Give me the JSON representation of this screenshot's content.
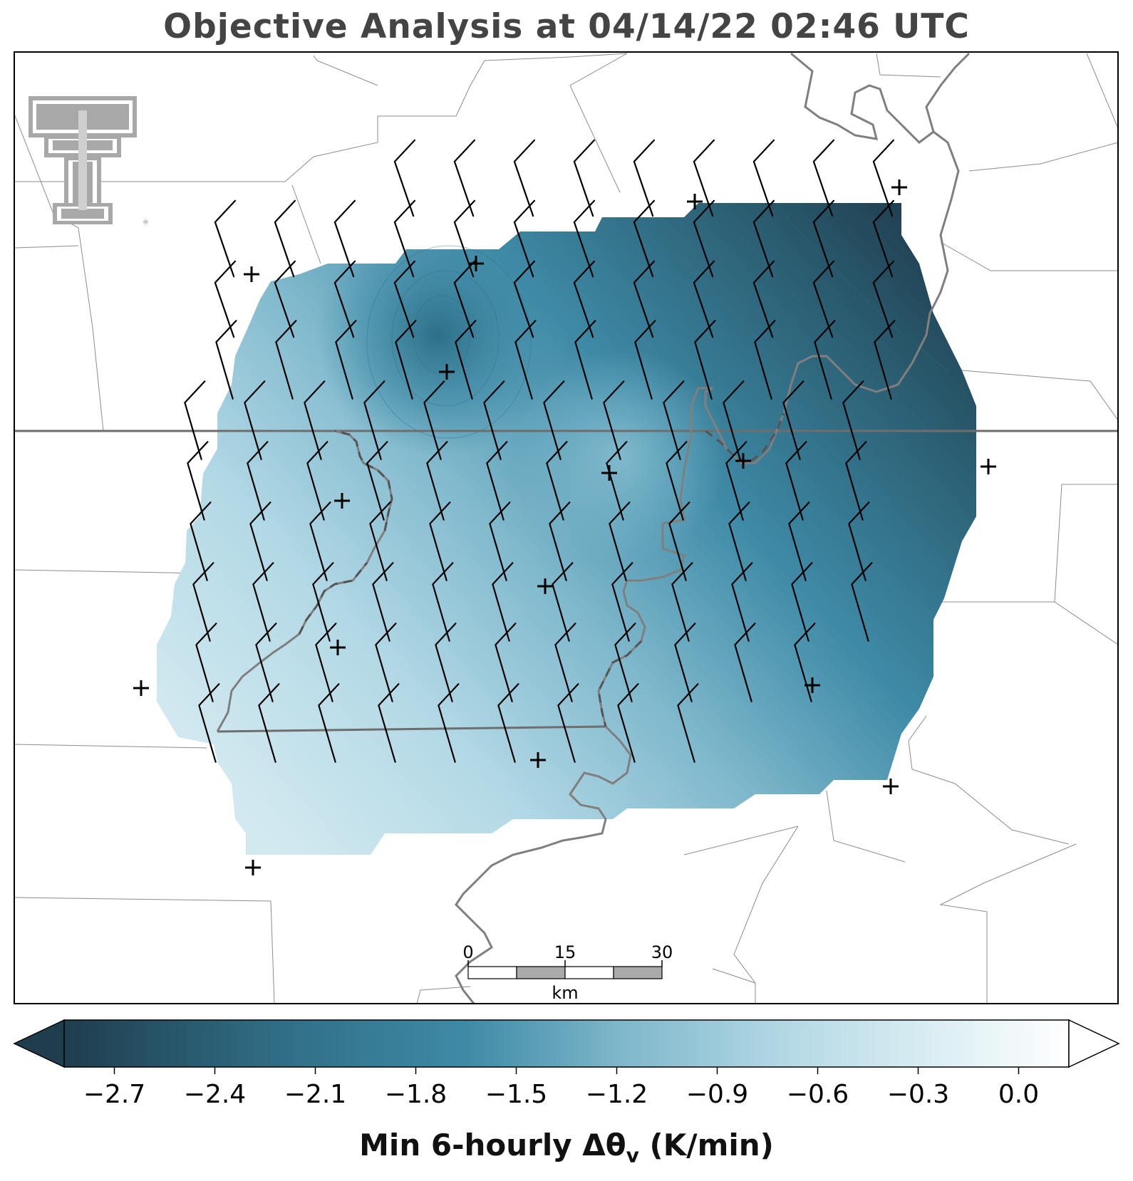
{
  "title": "Objective Analysis at 04/14/22 02:46 UTC",
  "logo": {
    "name": "texas-tech-double-t-logo",
    "text": "TT",
    "registered": "®"
  },
  "colors": {
    "darkest": "#1f3d4d",
    "mid": "#3e8aa6",
    "light": "#c6e3ec",
    "lightest": "#ffffff",
    "border_county": "#888888",
    "border_state": "#6e6e6e",
    "river": "#7a7a7a",
    "barb": "#000000"
  },
  "scalebar": {
    "ticks": [
      "0",
      "15",
      "30"
    ],
    "unit": "km"
  },
  "colorbar": {
    "ticks": [
      "−2.7",
      "−2.4",
      "−2.1",
      "−1.8",
      "−1.5",
      "−1.2",
      "−0.9",
      "−0.6",
      "−0.3",
      "0.0"
    ],
    "tick_values": [
      -2.7,
      -2.4,
      -2.1,
      -1.8,
      -1.5,
      -1.2,
      -0.9,
      -0.6,
      -0.3,
      0.0
    ],
    "min": -2.85,
    "max": 0.15,
    "extend": "both",
    "label_main": "Min 6-hourly Δθ",
    "label_sub": "v",
    "label_units": " (K/min)"
  },
  "observation_marker": "+",
  "wind_barbs": {
    "direction_from": "northwest",
    "speed_kt": 10
  }
}
